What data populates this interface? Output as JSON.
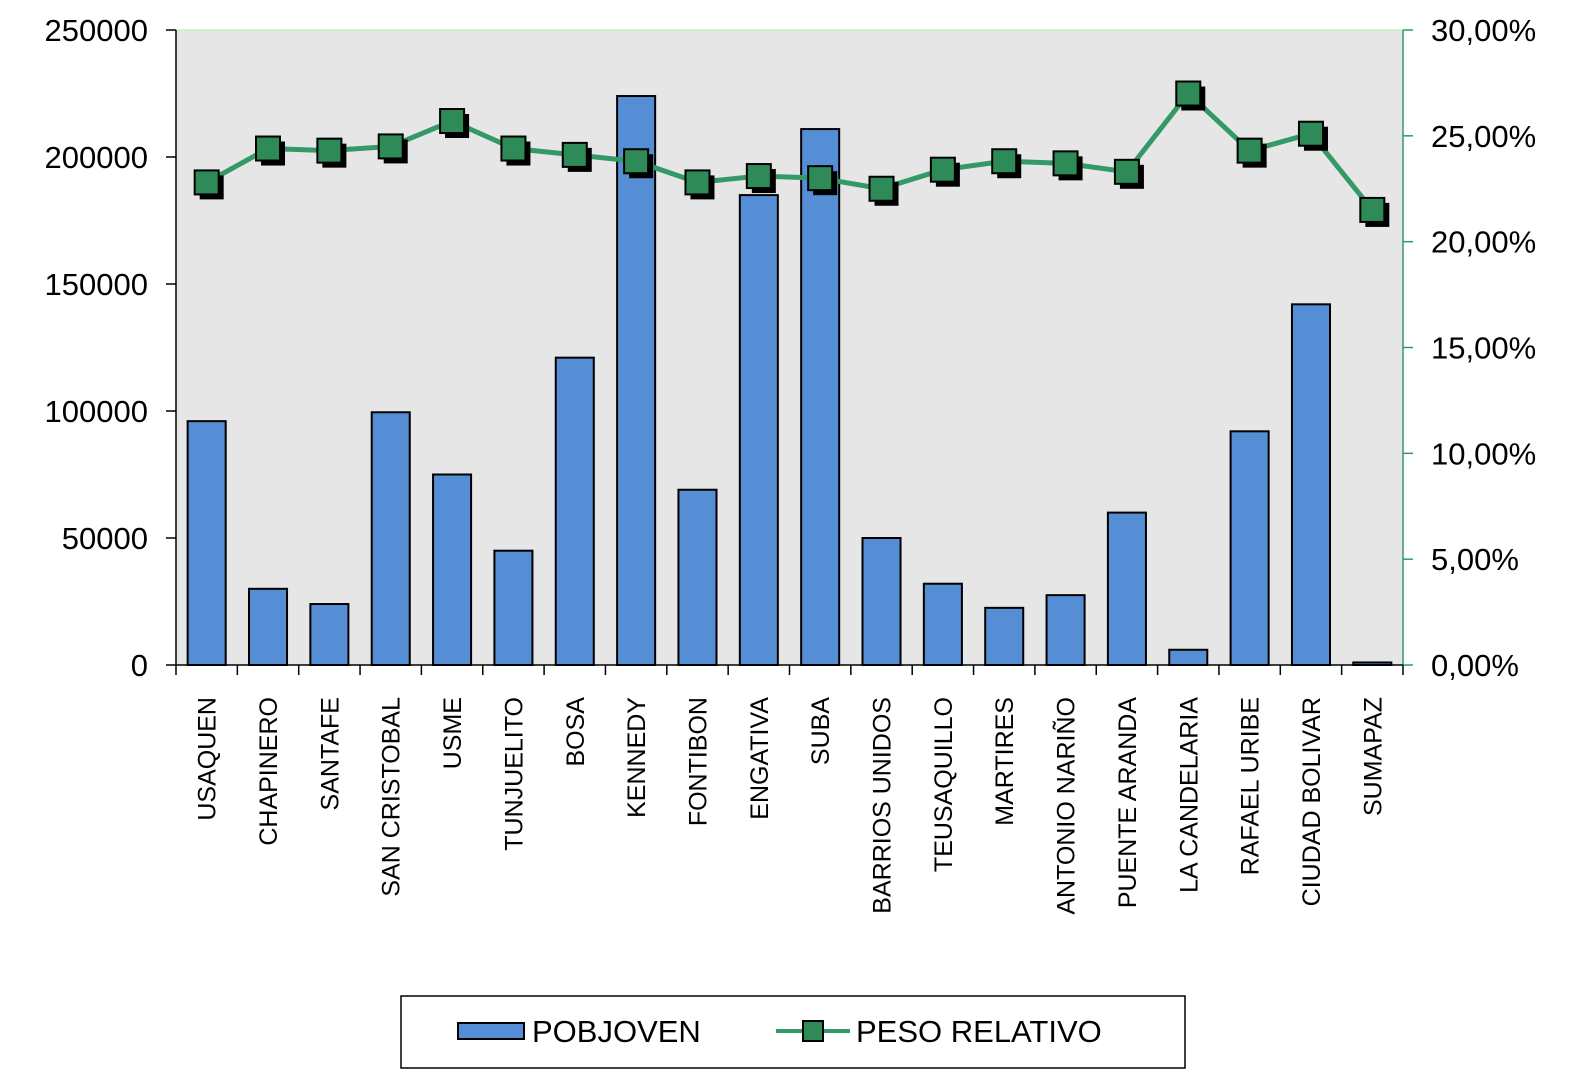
{
  "chart_data": {
    "type": "bar",
    "categories": [
      "USAQUEN",
      "CHAPINERO",
      "SANTAFE",
      "SAN CRISTOBAL",
      "USME",
      "TUNJUELITO",
      "BOSA",
      "KENNEDY",
      "FONTIBON",
      "ENGATIVA",
      "SUBA",
      "BARRIOS UNIDOS",
      "TEUSAQUILLO",
      "MARTIRES",
      "ANTONIO NARIÑO",
      "PUENTE ARANDA",
      "LA CANDELARIA",
      "RAFAEL URIBE",
      "CIUDAD BOLIVAR",
      "SUMAPAZ"
    ],
    "series": [
      {
        "name": "POBJOVEN",
        "type": "bar",
        "axis": "left",
        "color": "#558ed5",
        "values": [
          96000,
          30000,
          24000,
          99500,
          75000,
          45000,
          121000,
          224000,
          69000,
          185000,
          211000,
          50000,
          32000,
          22500,
          27500,
          60000,
          6000,
          92000,
          142000,
          1000
        ]
      },
      {
        "name": "PESO RELATIVO",
        "type": "line",
        "axis": "right",
        "color": "#339966",
        "marker_color": "#2e8b57",
        "values": [
          22.8,
          24.4,
          24.3,
          24.5,
          25.7,
          24.4,
          24.1,
          23.8,
          22.8,
          23.1,
          23.0,
          22.5,
          23.4,
          23.8,
          23.7,
          23.3,
          27.0,
          24.3,
          25.1,
          21.5
        ]
      }
    ],
    "left_axis": {
      "min": 0,
      "max": 250000,
      "ticks": [
        "0",
        "50000",
        "100000",
        "150000",
        "200000",
        "250000"
      ]
    },
    "right_axis": {
      "min": 0,
      "max": 30,
      "ticks": [
        "0,00%",
        "5,00%",
        "10,00%",
        "15,00%",
        "20,00%",
        "25,00%",
        "30,00%"
      ]
    },
    "legend": {
      "placement": "bottom",
      "items": [
        "POBJOVEN",
        "PESO RELATIVO"
      ]
    },
    "plot_background": "#e6e6e6",
    "grid": false
  }
}
